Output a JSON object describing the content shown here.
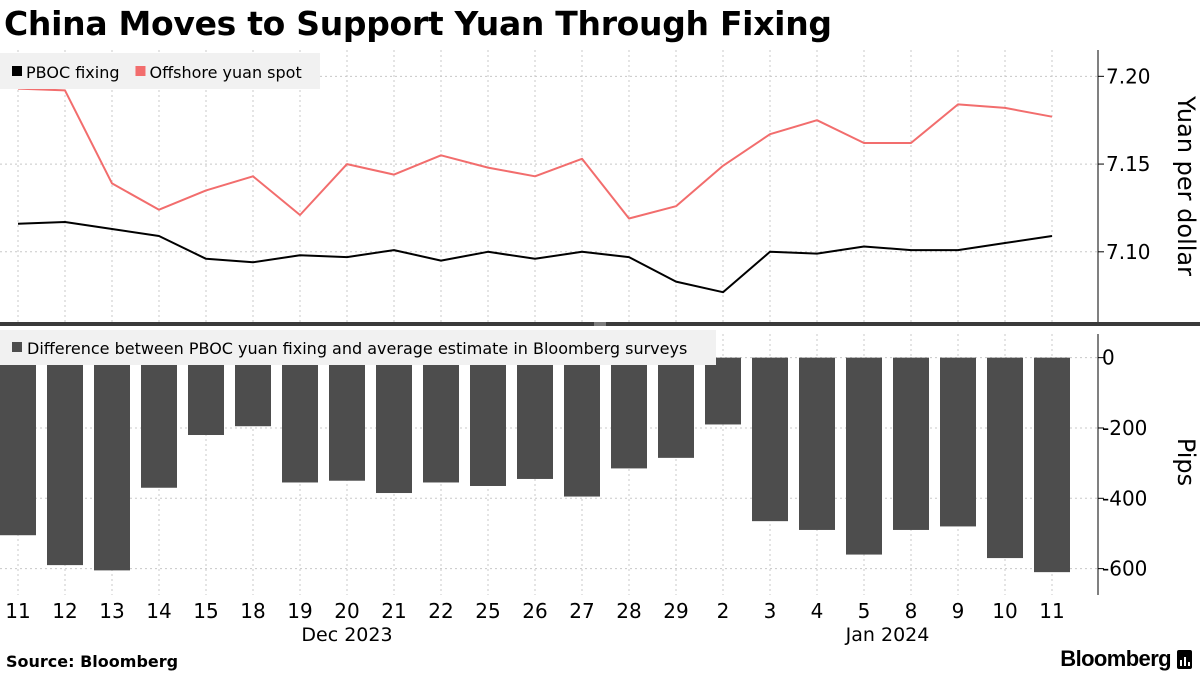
{
  "title": "China Moves to Support Yuan Through Fixing",
  "source": "Source: Bloomberg",
  "brand": "Bloomberg",
  "chart_data": [
    {
      "type": "line",
      "x": [
        "2023-12-11",
        "2023-12-12",
        "2023-12-13",
        "2023-12-14",
        "2023-12-15",
        "2023-12-18",
        "2023-12-19",
        "2023-12-20",
        "2023-12-21",
        "2023-12-22",
        "2023-12-25",
        "2023-12-26",
        "2023-12-27",
        "2023-12-28",
        "2023-12-29",
        "2024-01-02",
        "2024-01-03",
        "2024-01-04",
        "2024-01-05",
        "2024-01-08",
        "2024-01-09",
        "2024-01-10",
        "2024-01-11"
      ],
      "series": [
        {
          "name": "PBOC fixing",
          "color": "#000000",
          "values": [
            7.116,
            7.117,
            7.113,
            7.109,
            7.096,
            7.094,
            7.098,
            7.097,
            7.101,
            7.095,
            7.1,
            7.096,
            7.1,
            7.097,
            7.083,
            7.077,
            7.1,
            7.099,
            7.103,
            7.101,
            7.101,
            7.105,
            7.109
          ]
        },
        {
          "name": "Offshore yuan spot",
          "color": "#f26d6d",
          "values": [
            7.193,
            7.192,
            7.139,
            7.124,
            7.135,
            7.143,
            7.121,
            7.15,
            7.144,
            7.155,
            7.148,
            7.143,
            7.153,
            7.119,
            7.126,
            7.149,
            7.167,
            7.175,
            7.162,
            7.162,
            7.184,
            7.182,
            7.177
          ]
        }
      ],
      "ylabel": "Yuan per dollar",
      "yticks": [
        "7.10",
        "7.15",
        "7.20"
      ],
      "ylim": [
        7.06,
        7.215
      ],
      "axis_side": "right",
      "grid": "vertical dotted",
      "legend_placement": "top-left"
    },
    {
      "type": "bar",
      "x": [
        "2023-12-11",
        "2023-12-12",
        "2023-12-13",
        "2023-12-14",
        "2023-12-15",
        "2023-12-18",
        "2023-12-19",
        "2023-12-20",
        "2023-12-21",
        "2023-12-22",
        "2023-12-25",
        "2023-12-26",
        "2023-12-27",
        "2023-12-28",
        "2023-12-29",
        "2024-01-02",
        "2024-01-03",
        "2024-01-04",
        "2024-01-05",
        "2024-01-08",
        "2024-01-09",
        "2024-01-10",
        "2024-01-11"
      ],
      "series": [
        {
          "name": "Difference between PBOC yuan fixing and average estimate in Bloomberg surveys",
          "color": "#4d4d4d",
          "values": [
            -505,
            -590,
            -605,
            -370,
            -220,
            -195,
            -355,
            -350,
            -385,
            -355,
            -365,
            -345,
            -395,
            -315,
            -285,
            -190,
            -465,
            -490,
            -560,
            -490,
            -480,
            -570,
            -610
          ]
        }
      ],
      "ylabel": "Pips",
      "yticks": [
        "0",
        "-200",
        "-400",
        "-600"
      ],
      "ylim": [
        -675,
        90
      ],
      "axis_side": "right",
      "legend_placement": "top-left"
    }
  ],
  "x_tick_labels": [
    "11",
    "12",
    "13",
    "14",
    "15",
    "18",
    "19",
    "20",
    "21",
    "22",
    "25",
    "26",
    "27",
    "28",
    "29",
    "2",
    "3",
    "4",
    "5",
    "8",
    "9",
    "10",
    "11"
  ],
  "x_group_labels": [
    {
      "label": "Dec 2023",
      "at_index": 7
    },
    {
      "label": "Jan 2024",
      "at_index": 18.5
    }
  ]
}
